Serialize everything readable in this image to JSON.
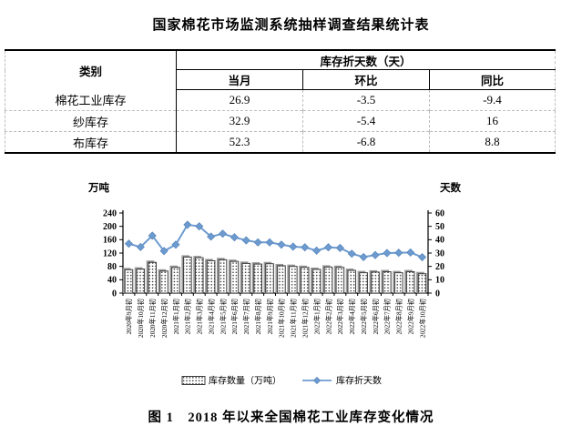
{
  "document": {
    "table_title": "国家棉花市场监测系统抽样调查结果统计表",
    "figure_caption": "图 1　2018 年以来全国棉花工业库存变化情况"
  },
  "table": {
    "category_header": "类别",
    "group_header": "库存折天数（天）",
    "sub_headers": [
      "当月",
      "环比",
      "同比"
    ],
    "rows": [
      {
        "category": "棉花工业库存",
        "current": "26.9",
        "mom": "-3.5",
        "yoy": "-9.4"
      },
      {
        "category": "纱库存",
        "current": "32.9",
        "mom": "-5.4",
        "yoy": "16"
      },
      {
        "category": "布库存",
        "current": "52.3",
        "mom": "-6.8",
        "yoy": "8.8"
      }
    ]
  },
  "chart_data": {
    "type": "bar",
    "title": "",
    "left_axis": {
      "title": "万吨",
      "min": 0,
      "max": 240,
      "step": 40
    },
    "right_axis": {
      "title": "天数",
      "min": 0,
      "max": 60,
      "step": 10
    },
    "grid": false,
    "legend_position": "bottom",
    "categories": [
      "2020年9月初",
      "2020年10月初",
      "2020年11月初",
      "2020年12月初",
      "2021年1月初",
      "2021年2月初",
      "2021年3月初",
      "2021年4月初",
      "2021年5月初",
      "2021年6月初",
      "2021年7月初",
      "2021年8月初",
      "2021年9月初",
      "2021年10月初",
      "2021年11月初",
      "2021年12月初",
      "2022年1月初",
      "2022年2月初",
      "2022年3月初",
      "2022年4月初",
      "2022年5月初",
      "2022年6月初",
      "2022年7月初",
      "2022年8月初",
      "2022年9月初",
      "2022年10月初"
    ],
    "series": [
      {
        "name": "库存数量（万吨）",
        "type": "bar",
        "axis": "left",
        "values": [
          70,
          72,
          92,
          66,
          77,
          108,
          106,
          97,
          100,
          95,
          89,
          87,
          88,
          82,
          80,
          77,
          71,
          78,
          77,
          68,
          61,
          63,
          64,
          61,
          64,
          58
        ]
      },
      {
        "name": "库存折天数",
        "type": "line",
        "axis": "right",
        "values": [
          37,
          34.5,
          43,
          31.5,
          36.3,
          51.2,
          50,
          42.3,
          44.5,
          41.8,
          39.5,
          38,
          38,
          36.3,
          34.8,
          34.3,
          31.8,
          34.3,
          33.8,
          29.5,
          27,
          28.5,
          30,
          30.2,
          30.4,
          26.9
        ]
      }
    ],
    "colors": {
      "line": "#6d9bd0",
      "line_marker_edge": "#5a88bd",
      "bar_fill": "#ffffff",
      "bar_dot": "#1a1a1a",
      "bar_border": "#3c3c3c",
      "bar_shadow": "#999999",
      "axis": "#000000"
    }
  }
}
